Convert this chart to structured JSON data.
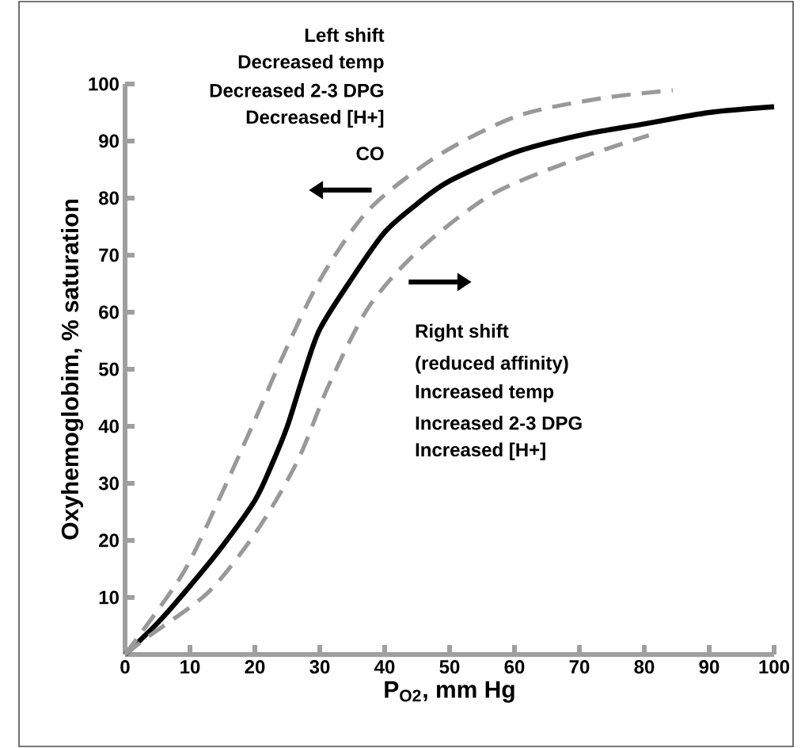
{
  "chart_data": {
    "type": "line",
    "xlabel": "P$_{O2}$, mm Hg",
    "ylabel": "Oxyhemoglobim, % saturation",
    "xlim": [
      0,
      100
    ],
    "ylim": [
      0,
      100
    ],
    "xticks": [
      0,
      10,
      20,
      30,
      40,
      50,
      60,
      70,
      80,
      90,
      100
    ],
    "yticks": [
      10,
      20,
      30,
      40,
      50,
      60,
      70,
      80,
      90,
      100
    ],
    "grid": false,
    "marker": "none",
    "series": [
      {
        "color": "#000000",
        "line_style": "solid",
        "x": [
          0,
          5,
          10,
          15,
          20,
          22.5,
          25,
          27.5,
          30,
          35,
          40,
          45,
          50,
          60,
          70,
          80,
          90,
          100
        ],
        "values": [
          0,
          5.5,
          12,
          19,
          27,
          33,
          40,
          49,
          57,
          66,
          74,
          79,
          83,
          88,
          91,
          93,
          95,
          96
        ]
      },
      {
        "color": "#999999",
        "line_style": "dashed",
        "x": [
          0,
          8.8,
          14.4,
          19.8,
          24.6,
          30.2,
          37.6,
          48.3,
          60.5,
          73.4,
          84.4
        ],
        "values": [
          0,
          14,
          27,
          40.6,
          53,
          66,
          78,
          87.5,
          94.4,
          97.5,
          98.9
        ]
      },
      {
        "color": "#999999",
        "line_style": "dashed",
        "x": [
          0,
          3.4,
          12.9,
          20.5,
          26.6,
          31.5,
          37.6,
          45.4,
          56.3,
          68.5,
          80.7
        ],
        "values": [
          0,
          3,
          11,
          22,
          34,
          47.5,
          61,
          71,
          80.5,
          86.4,
          91
        ]
      }
    ],
    "annotations": [
      "**Left shift**",
      "Decreased temp",
      "Decreased 2-3 DPG",
      "Decreased [H+]",
      "CO",
      "**Right shift**",
      "(reduced affinity)",
      "Increased temp",
      "Increased 2-3 DPG",
      "Increased [H+]"
    ]
  }
}
